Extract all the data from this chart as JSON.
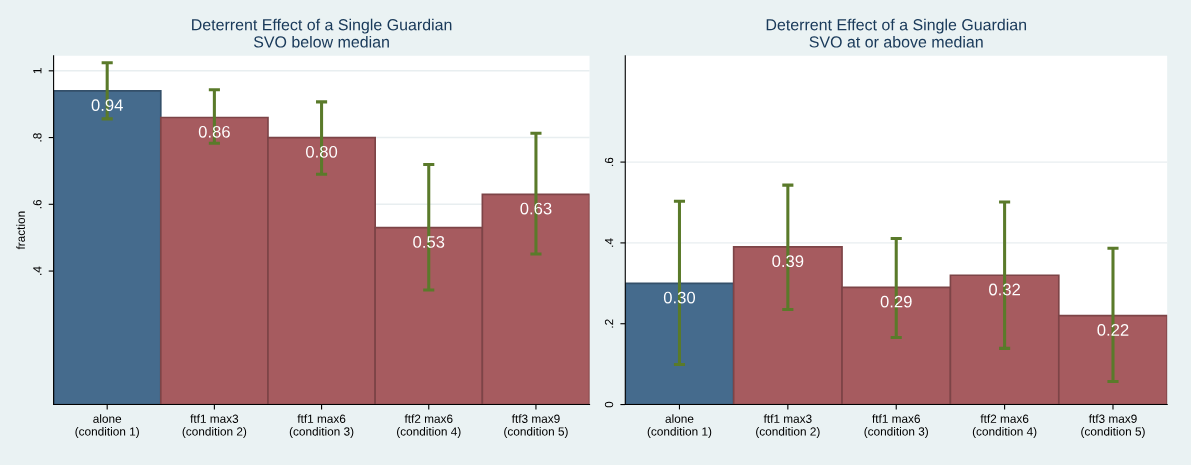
{
  "chart_data": [
    {
      "type": "bar",
      "title": "Deterrent Effect of a Single Guardian",
      "subtitle": "SVO below median",
      "ylabel": "fraction",
      "categories": [
        "alone\n(condition 1)",
        "ftf1 max3\n(condition 2)",
        "ftf1 max6\n(condition 3)",
        "ftf2 max6\n(condition 4)",
        "ftf3 max9\n(condition 5)"
      ],
      "values": [
        0.94,
        0.86,
        0.8,
        0.53,
        0.63
      ],
      "value_labels": [
        "0.94",
        "0.86",
        "0.80",
        "0.53",
        "0.63"
      ],
      "colors": [
        "#456b8d",
        "#a65b5f",
        "#a65b5f",
        "#a65b5f",
        "#a65b5f"
      ],
      "errors": [
        [
          0.856,
          1.024
        ],
        [
          0.783,
          0.943
        ],
        [
          0.69,
          0.907
        ],
        [
          0.343,
          0.719
        ],
        [
          0.451,
          0.813
        ]
      ],
      "ylim": [
        0,
        1.045
      ],
      "yticks": [
        {
          "value": 0.4,
          "label": ".4"
        },
        {
          "value": 0.6,
          "label": ".6"
        },
        {
          "value": 0.8,
          "label": ".8"
        },
        {
          "value": 1,
          "label": "1"
        }
      ],
      "grid": "y"
    },
    {
      "type": "bar",
      "title": "Deterrent Effect of a Single Guardian",
      "subtitle": "SVO at or above median",
      "categories": [
        "alone\n(condition 1)",
        "ftf1 max3\n(condition 2)",
        "ftf1 max6\n(condition 3)",
        "ftf2 max6\n(condition 4)",
        "ftf3 max9\n(condition 5)"
      ],
      "values": [
        0.3,
        0.39,
        0.29,
        0.32,
        0.22
      ],
      "value_labels": [
        "0.30",
        "0.39",
        "0.29",
        "0.32",
        "0.22"
      ],
      "colors": [
        "#456b8d",
        "#a65b5f",
        "#a65b5f",
        "#a65b5f",
        "#a65b5f"
      ],
      "errors": [
        [
          0.099,
          0.503
        ],
        [
          0.235,
          0.543
        ],
        [
          0.166,
          0.411
        ],
        [
          0.139,
          0.501
        ],
        [
          0.057,
          0.387
        ]
      ],
      "ylim": [
        0,
        0.863
      ],
      "yticks": [
        {
          "value": 0,
          "label": "0"
        },
        {
          "value": 0.2,
          "label": ".2"
        },
        {
          "value": 0.4,
          "label": ".4"
        },
        {
          "value": 0.6,
          "label": ".6"
        }
      ],
      "grid": "y"
    }
  ]
}
